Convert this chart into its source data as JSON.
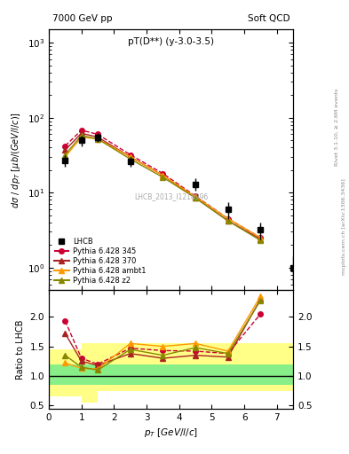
{
  "title_left": "7000 GeV pp",
  "title_right": "Soft QCD",
  "plot_label": "pT(D**) (y-3.0-3.5)",
  "watermark": "LHCB_2013_I1218996",
  "right_label": "Rivet 3.1.10, ≥ 2.6M events",
  "right_label2": "mcplots.cern.ch [arXiv:1306.3436]",
  "lhcb_pt": [
    0.5,
    1.0,
    1.5,
    2.5,
    4.5,
    5.5,
    6.5,
    7.5
  ],
  "lhcb_val": [
    27,
    50,
    55,
    26,
    13,
    6,
    3.2,
    1.0
  ],
  "lhcb_err_up": [
    5,
    8,
    8,
    4,
    2.5,
    1.5,
    0.8,
    0.4
  ],
  "lhcb_err_dn": [
    5,
    8,
    8,
    4,
    2.5,
    1.5,
    0.8,
    0.4
  ],
  "py345_pt": [
    0.5,
    1.0,
    1.5,
    2.5,
    3.5,
    4.5,
    5.5,
    6.5
  ],
  "py345_val": [
    42,
    68,
    60,
    32,
    18,
    9.0,
    4.5,
    2.5
  ],
  "py370_pt": [
    0.5,
    1.0,
    1.5,
    2.5,
    3.5,
    4.5,
    5.5,
    6.5
  ],
  "py370_val": [
    37,
    62,
    55,
    30,
    17,
    8.5,
    4.2,
    2.4
  ],
  "pyambt1_pt": [
    0.5,
    1.0,
    1.5,
    2.5,
    3.5,
    4.5,
    5.5,
    6.5
  ],
  "pyambt1_val": [
    30,
    55,
    52,
    30,
    17,
    8.8,
    4.5,
    2.5
  ],
  "pyz2_pt": [
    0.5,
    1.0,
    1.5,
    2.5,
    3.5,
    4.5,
    5.5,
    6.5
  ],
  "pyz2_val": [
    32,
    58,
    52,
    28,
    16,
    8.5,
    4.2,
    2.3
  ],
  "ratio345_pt": [
    0.5,
    1.0,
    1.5,
    2.5,
    3.5,
    4.5,
    5.5,
    6.5
  ],
  "ratio345_val": [
    1.93,
    1.3,
    1.2,
    1.47,
    1.43,
    1.42,
    1.38,
    2.05
  ],
  "ratio370_pt": [
    0.5,
    1.0,
    1.5,
    2.5,
    3.5,
    4.5,
    5.5,
    6.5
  ],
  "ratio370_val": [
    1.72,
    1.25,
    1.18,
    1.38,
    1.3,
    1.35,
    1.32,
    2.3
  ],
  "ratioambt1_pt": [
    0.5,
    1.0,
    1.5,
    2.5,
    3.5,
    4.5,
    5.5,
    6.5
  ],
  "ratioambt1_val": [
    1.22,
    1.13,
    1.12,
    1.55,
    1.5,
    1.55,
    1.42,
    2.35
  ],
  "ratioz2_pt": [
    0.5,
    1.0,
    1.5,
    2.5,
    3.5,
    4.5,
    5.5,
    6.5
  ],
  "ratioz2_val": [
    1.35,
    1.15,
    1.1,
    1.45,
    1.35,
    1.48,
    1.38,
    2.28
  ],
  "band_pt_edges": [
    0.0,
    1.0,
    1.5,
    3.5,
    5.5,
    7.5
  ],
  "band_green_up": [
    1.2,
    1.2,
    1.2,
    1.2,
    1.2,
    1.2
  ],
  "band_green_dn": [
    0.85,
    0.85,
    0.85,
    0.85,
    0.85,
    0.85
  ],
  "band_yellow_up_vals": [
    1.45,
    1.55,
    1.55,
    1.55,
    1.55,
    1.55
  ],
  "band_yellow_dn_vals": [
    0.65,
    0.55,
    0.75,
    0.75,
    0.75,
    0.75
  ],
  "color_345": "#cc0033",
  "color_370": "#aa2222",
  "color_ambt1": "#ff9900",
  "color_z2": "#888800",
  "color_lhcb": "black",
  "ylim_main": [
    0.5,
    1500
  ],
  "ylim_ratio": [
    0.45,
    2.45
  ],
  "xlim": [
    0.0,
    7.5
  ],
  "yticks_ratio": [
    0.5,
    1.0,
    1.5,
    2.0
  ]
}
